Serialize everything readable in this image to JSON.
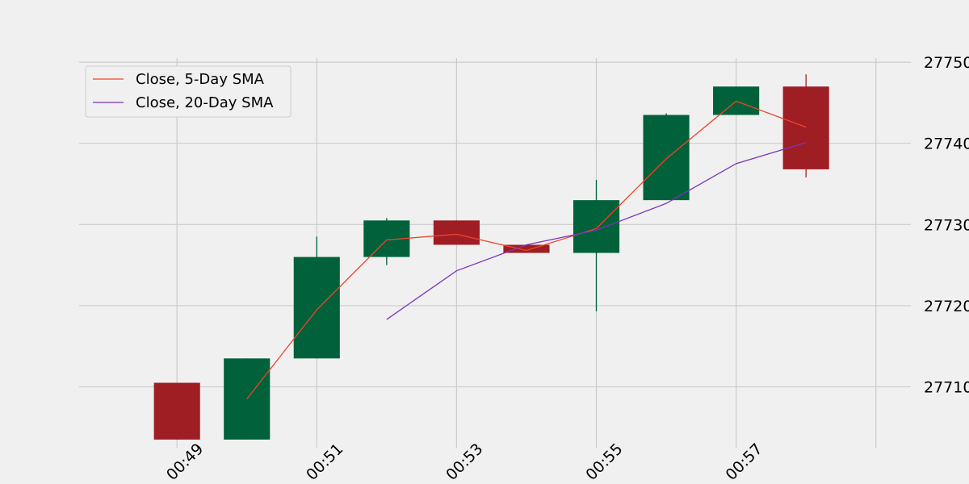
{
  "chart_data": {
    "type": "candlestick",
    "title": "",
    "xlabel": "",
    "ylabel": "",
    "ylim": [
      27702.5,
      27751.5
    ],
    "y_axis_side": "right",
    "y_ticks": [
      27710,
      27720,
      27730,
      27740,
      27750
    ],
    "y_tick_labels": [
      "27710",
      "27720",
      "27730",
      "27740",
      "27750"
    ],
    "x_ticks": [
      1,
      3,
      5,
      7,
      9,
      11
    ],
    "x_tick_labels": [
      "00:49",
      "00:51",
      "00:53",
      "00:55",
      "00:57",
      ""
    ],
    "x_tick_rotation_deg": 45,
    "xlim": [
      -0.4,
      11.5
    ],
    "grid": true,
    "candles": [
      {
        "x": 1,
        "open": 27710.5,
        "high": 27710.5,
        "low": 27703.5,
        "close": 27703.5
      },
      {
        "x": 2,
        "open": 27703.5,
        "high": 27713.5,
        "low": 27703.5,
        "close": 27713.5
      },
      {
        "x": 3,
        "open": 27713.5,
        "high": 27728.5,
        "low": 27713.5,
        "close": 27726.0
      },
      {
        "x": 4,
        "open": 27726.0,
        "high": 27730.8,
        "low": 27725.0,
        "close": 27730.5
      },
      {
        "x": 5,
        "open": 27730.5,
        "high": 27730.5,
        "low": 27727.5,
        "close": 27727.5
      },
      {
        "x": 6,
        "open": 27727.5,
        "high": 27727.5,
        "low": 27726.5,
        "close": 27726.5
      },
      {
        "x": 7,
        "open": 27726.5,
        "high": 27735.5,
        "low": 27719.3,
        "close": 27733.0
      },
      {
        "x": 8,
        "open": 27733.0,
        "high": 27743.7,
        "low": 27733.0,
        "close": 27743.5
      },
      {
        "x": 9,
        "open": 27743.5,
        "high": 27747.0,
        "low": 27743.5,
        "close": 27747.0
      },
      {
        "x": 10,
        "open": 27747.0,
        "high": 27748.5,
        "low": 27735.8,
        "close": 27736.8
      }
    ],
    "series": [
      {
        "name": "Close, 5-Day SMA",
        "color": "#f0432a",
        "x": [
          2,
          3,
          4,
          5,
          6,
          7,
          8,
          9,
          10
        ],
        "values": [
          27708.5,
          27719.5,
          27728.1,
          27728.8,
          27726.8,
          27729.5,
          27738.1,
          27745.2,
          27742.0
        ]
      },
      {
        "name": "Close, 20-Day SMA",
        "color": "#7b35b8",
        "x": [
          4,
          5,
          6,
          7,
          8,
          9,
          10
        ],
        "values": [
          27718.3,
          27724.3,
          27727.5,
          27729.3,
          27732.6,
          27737.5,
          27740.1
        ]
      }
    ],
    "up_color": "#00613b",
    "down_color": "#9e1e24",
    "legend_placement": "top-left"
  }
}
